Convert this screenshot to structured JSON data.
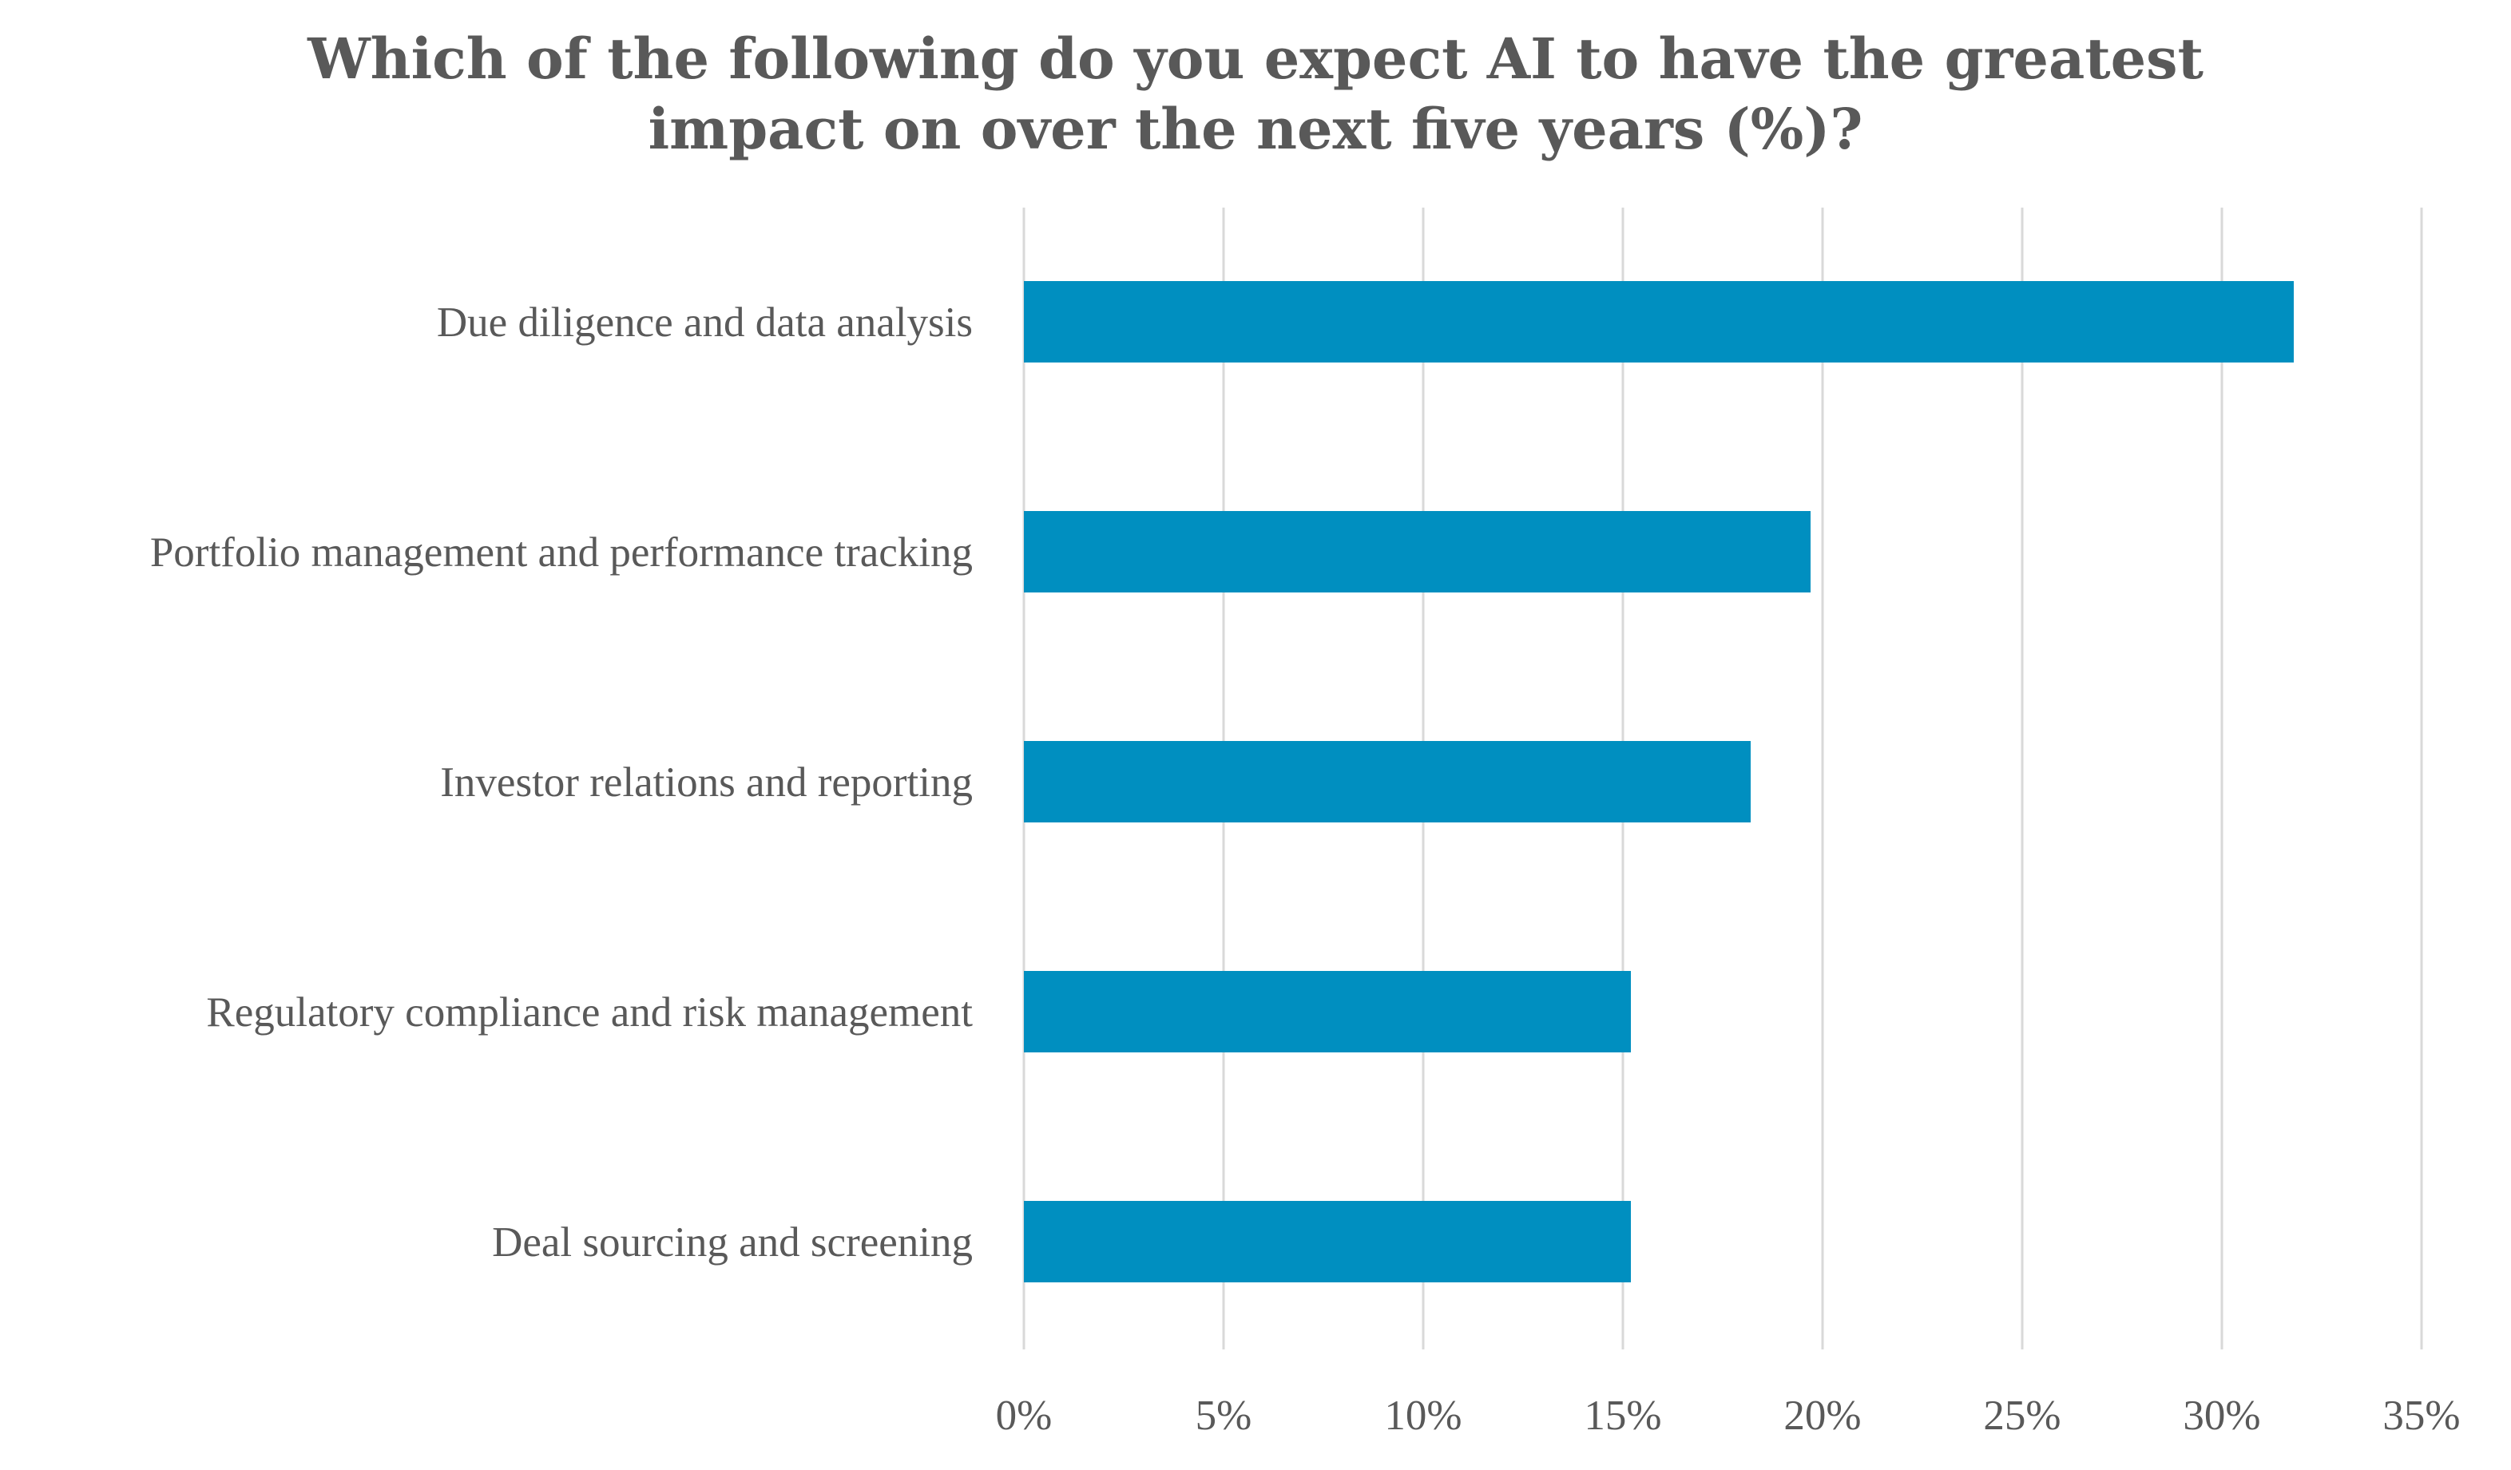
{
  "chart_data": {
    "type": "bar",
    "orientation": "horizontal",
    "title": "Which of the following do you expect AI to have the greatest impact on over the next five years (%)?",
    "title_lines": [
      "Which of the following do you expect AI to have the greatest",
      "impact on over the next five years (%)?"
    ],
    "categories": [
      "Due diligence and data analysis",
      "Portfolio management and performance tracking",
      "Investor relations and reporting",
      "Regulatory compliance and risk management",
      "Deal sourcing and screening"
    ],
    "values": [
      31.8,
      19.7,
      18.2,
      15.2,
      15.2
    ],
    "xlabel": "",
    "ylabel": "",
    "xlim": [
      0,
      35
    ],
    "x_ticks": [
      0,
      5,
      10,
      15,
      20,
      25,
      30,
      35
    ],
    "x_tick_labels": [
      "0%",
      "5%",
      "10%",
      "15%",
      "20%",
      "25%",
      "30%",
      "35%"
    ],
    "grid": "vertical",
    "legend": "none",
    "colors": {
      "bar": "#008FC0",
      "grid": "#D9D9D9",
      "text": "#595959"
    }
  }
}
